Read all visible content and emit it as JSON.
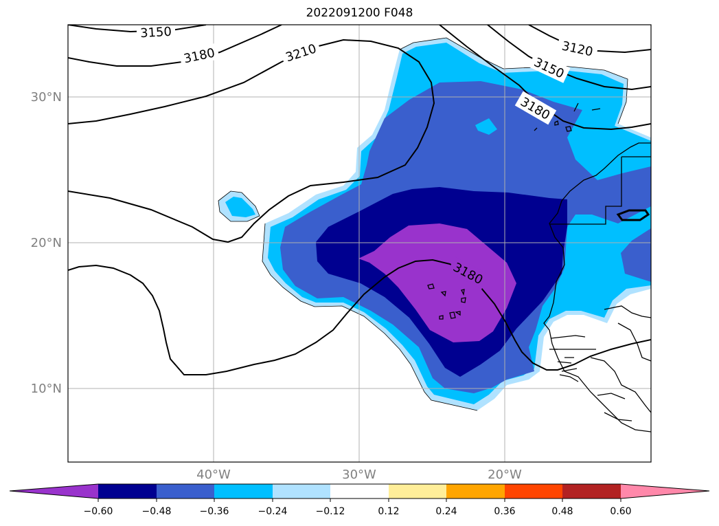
{
  "title": "2022091200 F048",
  "lat_labels": [
    "30°N",
    "20°N",
    "10°N"
  ],
  "lon_labels": [
    "40°W",
    "30°W",
    "20°W"
  ],
  "contour_labels": [
    "3150",
    "3180",
    "3210",
    "3120",
    "3150",
    "3180",
    "3180"
  ],
  "colorbar": {
    "ticks": [
      "−0.60",
      "−0.48",
      "−0.36",
      "−0.24",
      "−0.12",
      "0.12",
      "0.24",
      "0.36",
      "0.48",
      "0.60"
    ],
    "colors": [
      "#9933cc",
      "#000090",
      "#3a5fcd",
      "#00bfff",
      "#b0e2ff",
      "#ffffff",
      "#ffee99",
      "#ffa500",
      "#ff4500",
      "#b22222",
      "#ff88aa"
    ]
  },
  "colors": {
    "lightblue": "#b0e2ff",
    "skyblue": "#00bfff",
    "royalblue": "#3a5fcd",
    "navy": "#000090",
    "purple": "#9933cc",
    "grid": "#b0b0b0"
  }
}
